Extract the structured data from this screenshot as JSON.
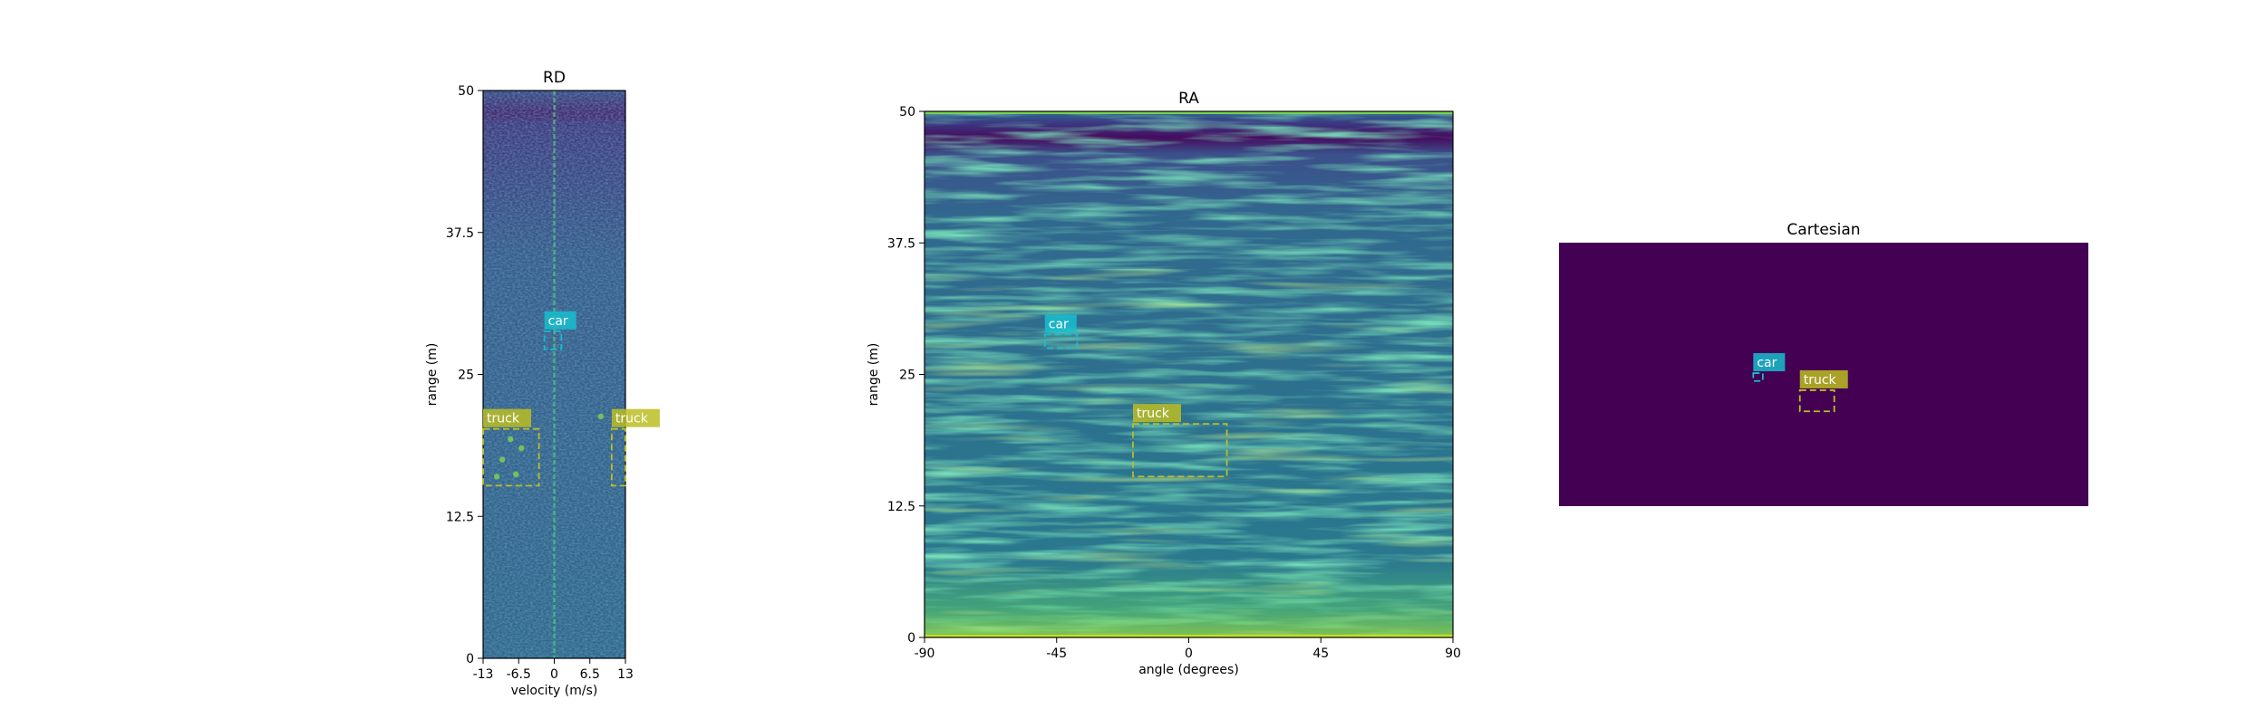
{
  "chart_data": [
    {
      "type": "heatmap",
      "title": "RD",
      "xlabel": "velocity (m/s)",
      "ylabel": "range (m)",
      "xlim": [
        -13,
        13
      ],
      "ylim": [
        0,
        50
      ],
      "xticks": [
        -13,
        -6.5,
        0,
        6.5,
        13
      ],
      "yticks": [
        0,
        12.5,
        25,
        37.5,
        50
      ],
      "xtick_labels": [
        "-13",
        "-6.5",
        "0",
        "6.5",
        "13"
      ],
      "ytick_labels": [
        "0",
        "12.5",
        "25",
        "37.5",
        "50"
      ],
      "colormap": "viridis",
      "annotations": [
        {
          "label": "car",
          "color": "#17becf",
          "x0": -1.8,
          "x1": 1.3,
          "y0": 27.2,
          "y1": 28.8
        },
        {
          "label": "truck",
          "color": "#bcbd22",
          "x0": -13,
          "x1": -2.8,
          "y0": 15.2,
          "y1": 20.2
        },
        {
          "label": "truck",
          "color": "#bcbd22",
          "x0": 10.5,
          "x1": 13,
          "y0": 15.2,
          "y1": 20.2
        }
      ]
    },
    {
      "type": "heatmap",
      "title": "RA",
      "xlabel": "angle (degrees)",
      "ylabel": "range (m)",
      "xlim": [
        -90,
        90
      ],
      "ylim": [
        0,
        50
      ],
      "xticks": [
        -90,
        -45,
        0,
        45,
        90
      ],
      "yticks": [
        0,
        12.5,
        25,
        37.5,
        50
      ],
      "xtick_labels": [
        "-90",
        "-45",
        "0",
        "45",
        "90"
      ],
      "ytick_labels": [
        "0",
        "12.5",
        "25",
        "37.5",
        "50"
      ],
      "colormap": "viridis",
      "annotations": [
        {
          "label": "car",
          "color": "#17becf",
          "x0": -49,
          "x1": -38,
          "y0": 27.5,
          "y1": 28.8
        },
        {
          "label": "truck",
          "color": "#bcbd22",
          "x0": -19,
          "x1": 13,
          "y0": 15.3,
          "y1": 20.3
        }
      ]
    },
    {
      "type": "heatmap",
      "title": "Cartesian",
      "colormap": "viridis",
      "axis": "off",
      "annotations": [
        {
          "label": "car",
          "color": "#17becf",
          "x0": 0.367,
          "x1": 0.385,
          "y0": 0.495,
          "y1": 0.525
        },
        {
          "label": "truck",
          "color": "#bcbd22",
          "x0": 0.455,
          "x1": 0.52,
          "y0": 0.56,
          "y1": 0.64
        }
      ]
    }
  ]
}
